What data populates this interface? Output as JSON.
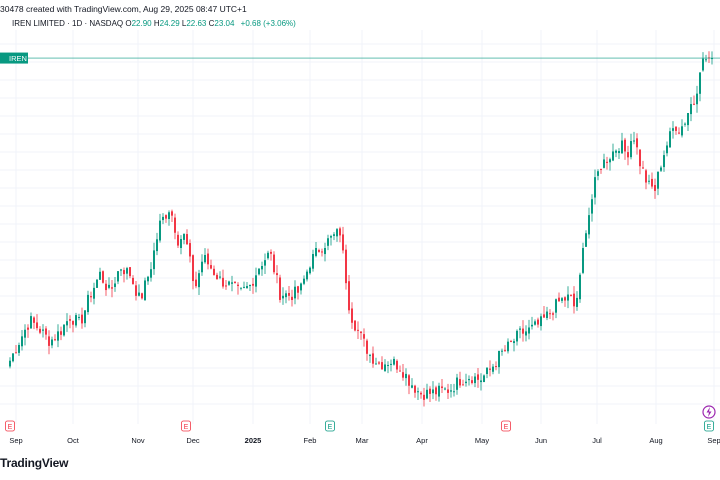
{
  "header": {
    "created_line": "30478 created with TradingView.com, Aug 29, 2025 08:47 UTC+1"
  },
  "legend": {
    "symbol_line": "IREN LIMITED · 1D · NASDAQ",
    "open_label": "O",
    "open": "22.90",
    "high_label": "H",
    "high": "24.29",
    "low_label": "L",
    "low": "22.63",
    "close_label": "C",
    "close": "23.04",
    "change": "+0.68 (+3.06%)"
  },
  "price_tag": "IREN",
  "brand": "TradingView",
  "colors": {
    "up": "#089981",
    "down": "#f23645",
    "grid": "#f0f3fa",
    "line": "#089981"
  },
  "chart_data": {
    "type": "candlestick",
    "symbol": "IREN",
    "interval": "1D",
    "x_ticks": [
      "Sep",
      "Oct",
      "Nov",
      "Dec",
      "2025",
      "Feb",
      "Mar",
      "Apr",
      "May",
      "Jun",
      "Jul",
      "Aug",
      "Sep"
    ],
    "earnings_markers": [
      "E",
      "E",
      "E",
      "E",
      "E"
    ],
    "last_close": 23.04,
    "ylim": [
      4,
      24.5
    ],
    "anchors": [
      [
        0,
        8.4
      ],
      [
        5,
        7.8
      ],
      [
        10,
        7.3
      ],
      [
        20,
        8.4
      ],
      [
        30,
        9.4
      ],
      [
        40,
        8.9
      ],
      [
        50,
        8.3
      ],
      [
        60,
        8.8
      ],
      [
        70,
        9.6
      ],
      [
        80,
        9.2
      ],
      [
        90,
        10.7
      ],
      [
        100,
        11.8
      ],
      [
        110,
        10.8
      ],
      [
        120,
        12.2
      ],
      [
        130,
        11.8
      ],
      [
        140,
        10.4
      ],
      [
        150,
        12.0
      ],
      [
        160,
        14.4
      ],
      [
        170,
        15.3
      ],
      [
        178,
        13.6
      ],
      [
        185,
        13.8
      ],
      [
        195,
        11.0
      ],
      [
        203,
        12.7
      ],
      [
        210,
        12.2
      ],
      [
        220,
        11.5
      ],
      [
        230,
        11.2
      ],
      [
        240,
        10.8
      ],
      [
        250,
        11.2
      ],
      [
        260,
        12.3
      ],
      [
        270,
        12.9
      ],
      [
        280,
        10.8
      ],
      [
        290,
        10.7
      ],
      [
        300,
        10.9
      ],
      [
        310,
        12.4
      ],
      [
        320,
        13.2
      ],
      [
        330,
        13.6
      ],
      [
        340,
        14.0
      ],
      [
        345,
        12.0
      ],
      [
        350,
        9.8
      ],
      [
        360,
        8.6
      ],
      [
        370,
        7.6
      ],
      [
        380,
        7.1
      ],
      [
        390,
        7.3
      ],
      [
        400,
        7.0
      ],
      [
        410,
        6.2
      ],
      [
        420,
        5.6
      ],
      [
        430,
        5.6
      ],
      [
        440,
        5.7
      ],
      [
        450,
        5.8
      ],
      [
        460,
        6.3
      ],
      [
        470,
        6.5
      ],
      [
        480,
        6.3
      ],
      [
        490,
        6.8
      ],
      [
        500,
        7.6
      ],
      [
        510,
        8.1
      ],
      [
        520,
        8.7
      ],
      [
        530,
        8.9
      ],
      [
        540,
        9.2
      ],
      [
        550,
        9.8
      ],
      [
        560,
        10.4
      ],
      [
        570,
        10.6
      ],
      [
        575,
        10.0
      ],
      [
        580,
        11.5
      ],
      [
        585,
        14.0
      ],
      [
        590,
        15.2
      ],
      [
        595,
        16.5
      ],
      [
        600,
        17.4
      ],
      [
        605,
        17.7
      ],
      [
        612,
        18.1
      ],
      [
        620,
        18.6
      ],
      [
        627,
        18.0
      ],
      [
        633,
        19.2
      ],
      [
        640,
        17.6
      ],
      [
        648,
        16.4
      ],
      [
        655,
        16.2
      ],
      [
        662,
        17.8
      ],
      [
        668,
        18.7
      ],
      [
        675,
        19.6
      ],
      [
        680,
        19.3
      ],
      [
        686,
        19.9
      ],
      [
        690,
        20.6
      ],
      [
        695,
        20.8
      ],
      [
        700,
        22.6
      ],
      [
        705,
        23.0
      ],
      [
        710,
        23.04
      ]
    ],
    "xlabel": "",
    "ylabel": "",
    "grid": true
  }
}
